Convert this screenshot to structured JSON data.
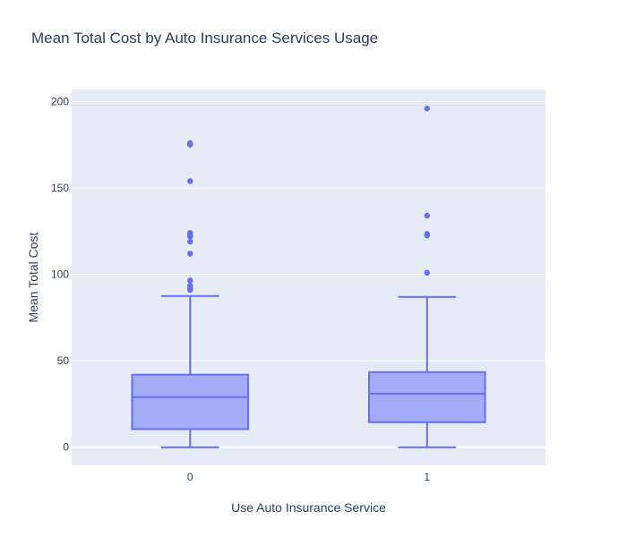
{
  "chart_data": {
    "type": "box",
    "title": "Mean Total Cost by Auto Insurance Services Usage",
    "xlabel": "Use Auto Insurance Service",
    "ylabel": "Mean Total Cost",
    "categories": [
      "0",
      "1"
    ],
    "ylim": [
      -10.5,
      207
    ],
    "yticks": [
      0,
      50,
      100,
      150,
      200
    ],
    "grid": true,
    "legend": "none",
    "colors": {
      "box_fill": "#a3acf7",
      "box_line": "#636efa",
      "plot_bg": "#e5ecf6",
      "grid": "#ffffff",
      "text": "#2a3f5f"
    },
    "boxes": [
      {
        "category": "0",
        "min": 0,
        "q1": 10.5,
        "median": 29,
        "q3": 42,
        "max": 87.5,
        "outliers": [
          91,
          92,
          93.5,
          96.5,
          112,
          119,
          122,
          123,
          124,
          154,
          175,
          176
        ]
      },
      {
        "category": "1",
        "min": 0,
        "q1": 14.5,
        "median": 31,
        "q3": 43.5,
        "max": 87,
        "outliers": [
          101,
          122.5,
          123.5,
          134,
          196
        ]
      }
    ]
  }
}
